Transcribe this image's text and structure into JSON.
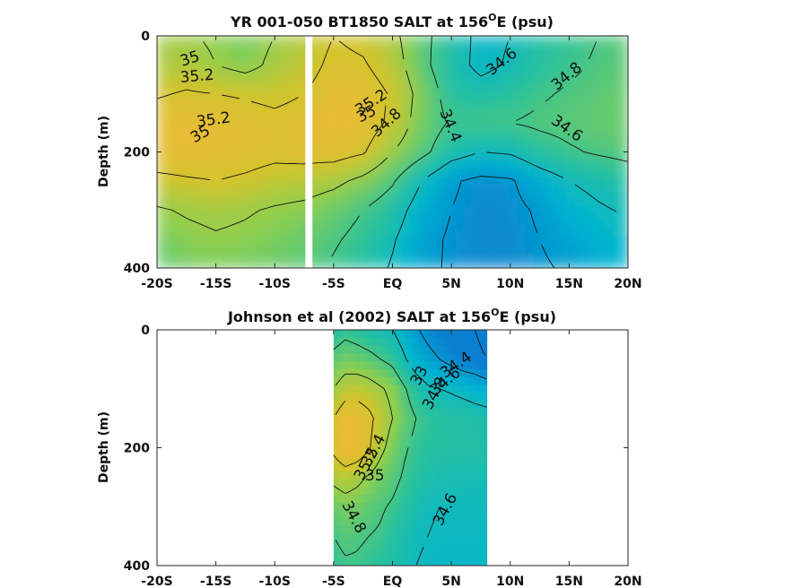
{
  "chart_data": [
    {
      "type": "heatmap",
      "title": "YR 001-050 BT1850 SALT at 156",
      "title_sup": "O",
      "title_tail": "E (psu)",
      "xlabel": "",
      "ylabel": "Depth (m)",
      "xlim": [
        -20,
        20
      ],
      "ylim": [
        400,
        0
      ],
      "x_ticks": [
        -20,
        -15,
        -10,
        -5,
        0,
        5,
        10,
        15,
        20
      ],
      "x_tick_labels": [
        "-20S",
        "-15S",
        "-10S",
        "-5S",
        "EQ",
        "5N",
        "10N",
        "15N",
        "20N"
      ],
      "y_ticks": [
        0,
        200,
        400
      ],
      "y_tick_labels": [
        "0",
        "200",
        "400"
      ],
      "masked_x": [
        -7.4,
        -6.8
      ],
      "colorscale": [
        "#0a7fd0",
        "#00b4d0",
        "#2cc29a",
        "#8ccf50",
        "#d2c42c",
        "#f2b83a"
      ],
      "value_range": [
        34.3,
        35.4
      ],
      "field": {
        "x": [
          -20,
          -17.5,
          -15,
          -12.5,
          -10,
          -7.5,
          -5,
          -2.5,
          0,
          2.5,
          5,
          7.5,
          10,
          12.5,
          15,
          17.5,
          20
        ],
        "y": [
          0,
          50,
          100,
          150,
          200,
          250,
          300,
          350,
          400
        ],
        "values": [
          [
            35.0,
            35.02,
            34.97,
            34.9,
            35.0,
            35.08,
            35.2,
            35.15,
            35.05,
            34.85,
            34.7,
            34.55,
            34.6,
            34.7,
            34.75,
            34.8,
            34.85
          ],
          [
            35.05,
            35.08,
            35.0,
            34.93,
            35.05,
            35.12,
            35.25,
            35.22,
            35.1,
            34.85,
            34.68,
            34.55,
            34.62,
            34.72,
            34.77,
            34.82,
            34.86
          ],
          [
            35.18,
            35.22,
            35.2,
            35.18,
            35.15,
            35.2,
            35.3,
            35.3,
            35.18,
            34.92,
            34.72,
            34.68,
            34.72,
            34.78,
            34.82,
            34.85,
            34.88
          ],
          [
            35.3,
            35.32,
            35.3,
            35.28,
            35.25,
            35.28,
            35.34,
            35.32,
            35.15,
            34.9,
            34.78,
            34.8,
            34.8,
            34.83,
            34.85,
            34.87,
            34.88
          ],
          [
            35.32,
            35.32,
            35.3,
            35.28,
            35.25,
            35.27,
            35.28,
            35.22,
            35.0,
            34.85,
            34.68,
            34.6,
            34.62,
            34.72,
            34.78,
            34.82,
            34.85
          ],
          [
            35.15,
            35.18,
            35.2,
            35.17,
            35.12,
            35.1,
            35.05,
            34.95,
            34.82,
            34.6,
            34.42,
            34.36,
            34.38,
            34.5,
            34.6,
            34.65,
            34.7
          ],
          [
            34.98,
            35.02,
            35.05,
            35.02,
            34.98,
            34.95,
            34.88,
            34.8,
            34.7,
            34.5,
            34.4,
            34.35,
            34.36,
            34.42,
            34.52,
            34.58,
            34.62
          ],
          [
            34.9,
            34.95,
            34.98,
            34.96,
            34.92,
            34.88,
            34.82,
            34.75,
            34.62,
            34.45,
            34.38,
            34.35,
            34.35,
            34.4,
            34.46,
            34.52,
            34.56
          ],
          [
            34.85,
            34.9,
            34.92,
            34.9,
            34.88,
            34.84,
            34.78,
            34.7,
            34.58,
            34.44,
            34.38,
            34.34,
            34.35,
            34.38,
            34.42,
            34.48,
            34.52
          ]
        ]
      },
      "contour_levels": [
        34.4,
        34.6,
        34.8,
        35.0,
        35.2
      ],
      "contour_labels": [
        {
          "text": "35",
          "x": -17.2,
          "y": 40,
          "angle": -18
        },
        {
          "text": "35.2",
          "x": -16.6,
          "y": 70,
          "angle": -5
        },
        {
          "text": "35.2",
          "x": -15.2,
          "y": 145,
          "angle": -8
        },
        {
          "text": "35",
          "x": -16.3,
          "y": 170,
          "angle": -30
        },
        {
          "text": "34.6",
          "x": 9.3,
          "y": 45,
          "angle": -38
        },
        {
          "text": "34.8",
          "x": 14.8,
          "y": 70,
          "angle": -40
        },
        {
          "text": "35.2",
          "x": -1.8,
          "y": 115,
          "angle": -33
        },
        {
          "text": "35",
          "x": -2.2,
          "y": 135,
          "angle": -28
        },
        {
          "text": "34.8",
          "x": -0.5,
          "y": 150,
          "angle": -42
        },
        {
          "text": "34.4",
          "x": 4.9,
          "y": 155,
          "angle": 68
        },
        {
          "text": "34.6",
          "x": 14.8,
          "y": 160,
          "angle": 35
        }
      ]
    },
    {
      "type": "heatmap",
      "title": "Johnson et al (2002) SALT at 156",
      "title_sup": "O",
      "title_tail": "E (psu)",
      "xlabel": "",
      "ylabel": "Depth (m)",
      "xlim": [
        -20,
        20
      ],
      "ylim": [
        400,
        0
      ],
      "x_ticks": [
        -20,
        -15,
        -10,
        -5,
        0,
        5,
        10,
        15,
        20
      ],
      "x_tick_labels": [
        "-20S",
        "-15S",
        "-10S",
        "-5S",
        "EQ",
        "5N",
        "10N",
        "15N",
        "20N"
      ],
      "y_ticks": [
        0,
        200,
        400
      ],
      "y_tick_labels": [
        "0",
        "200",
        "400"
      ],
      "data_x_range": [
        -5,
        8
      ],
      "colorscale": [
        "#0a7fd0",
        "#00b4d0",
        "#2cc29a",
        "#8ccf50",
        "#d2c42c",
        "#f2b83a"
      ],
      "value_range": [
        34.3,
        35.4
      ],
      "field": {
        "x": [
          -5,
          -4,
          -3,
          -2,
          -1,
          0,
          1,
          2,
          3,
          4,
          5,
          6,
          7,
          8
        ],
        "y": [
          0,
          50,
          100,
          150,
          200,
          250,
          300,
          350,
          400
        ],
        "values": [
          [
            34.7,
            34.75,
            34.72,
            34.68,
            34.65,
            34.6,
            34.5,
            34.42,
            34.35,
            34.3,
            34.25,
            34.22,
            34.2,
            34.1
          ],
          [
            34.85,
            34.9,
            34.88,
            34.85,
            34.8,
            34.75,
            34.62,
            34.5,
            34.45,
            34.4,
            34.35,
            34.3,
            34.28,
            34.2
          ],
          [
            35.0,
            35.1,
            35.12,
            35.08,
            35.02,
            34.95,
            34.82,
            34.7,
            34.62,
            34.6,
            34.58,
            34.55,
            34.52,
            34.5
          ],
          [
            35.2,
            35.35,
            35.32,
            35.25,
            35.12,
            35.0,
            34.88,
            34.8,
            34.75,
            34.72,
            34.7,
            34.7,
            34.68,
            34.66
          ],
          [
            35.25,
            35.38,
            35.34,
            35.22,
            35.05,
            34.92,
            34.82,
            34.76,
            34.72,
            34.7,
            34.7,
            34.7,
            34.7,
            34.68
          ],
          [
            35.05,
            35.1,
            35.05,
            34.98,
            34.9,
            34.85,
            34.78,
            34.72,
            34.68,
            34.66,
            34.65,
            34.64,
            34.64,
            34.64
          ],
          [
            34.88,
            34.92,
            34.9,
            34.86,
            34.82,
            34.78,
            34.72,
            34.66,
            34.62,
            34.6,
            34.6,
            34.6,
            34.6,
            34.6
          ],
          [
            34.8,
            34.84,
            34.82,
            34.8,
            34.78,
            34.72,
            34.66,
            34.62,
            34.6,
            34.58,
            34.58,
            34.58,
            34.58,
            34.58
          ],
          [
            34.75,
            34.78,
            34.78,
            34.76,
            34.72,
            34.68,
            34.64,
            34.6,
            34.58,
            34.56,
            34.56,
            34.56,
            34.56,
            34.56
          ]
        ]
      },
      "contour_levels": [
        34.2,
        34.4,
        34.6,
        34.8,
        35.0,
        35.2,
        35.4
      ],
      "contour_labels": [
        {
          "text": "34.4",
          "x": 5.4,
          "y": 60,
          "angle": -35
        },
        {
          "text": "34.6",
          "x": 4.5,
          "y": 88,
          "angle": -40
        },
        {
          "text": "34.8",
          "x": 3.6,
          "y": 108,
          "angle": -62
        },
        {
          "text": "33",
          "x": 2.3,
          "y": 78,
          "angle": -62
        },
        {
          "text": "35.4",
          "x": -1.6,
          "y": 205,
          "angle": -62
        },
        {
          "text": "35.2",
          "x": -2.2,
          "y": 228,
          "angle": -62
        },
        {
          "text": "35",
          "x": -1.5,
          "y": 248,
          "angle": 0
        },
        {
          "text": "34.8",
          "x": -3.3,
          "y": 318,
          "angle": 62
        },
        {
          "text": "34.6",
          "x": 4.5,
          "y": 305,
          "angle": -62
        }
      ]
    }
  ]
}
